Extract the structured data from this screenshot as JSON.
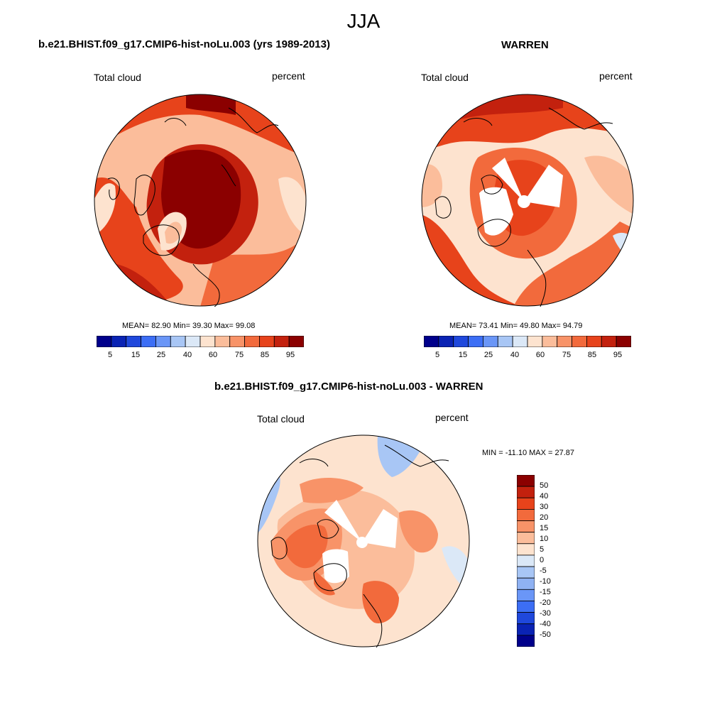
{
  "title": "JJA",
  "panels": [
    {
      "id": "model",
      "heading": "b.e21.BHIST.f09_g17.CMIP6-hist-noLu.003 (yrs 1989-2013)",
      "variable": "Total cloud",
      "units": "percent",
      "stats": "MEAN=  82.90  Min=  39.30  Max=  99.08",
      "colorbar_ticks": [
        "5",
        "15",
        "25",
        "40",
        "60",
        "75",
        "85",
        "95"
      ]
    },
    {
      "id": "obs",
      "heading": "WARREN",
      "variable": "Total cloud",
      "units": "percent",
      "stats": "MEAN=  73.41  Min=  49.80  Max=  94.79",
      "colorbar_ticks": [
        "5",
        "15",
        "25",
        "40",
        "60",
        "75",
        "85",
        "95"
      ]
    }
  ],
  "diff_panel": {
    "heading": "b.e21.BHIST.f09_g17.CMIP6-hist-noLu.003 - WARREN",
    "variable": "Total cloud",
    "units": "percent",
    "minmax": "MIN = -11.10 MAX =  27.87",
    "colorbar_ticks": [
      "50",
      "40",
      "30",
      "20",
      "15",
      "10",
      "5",
      "0",
      "-5",
      "-10",
      "-15",
      "-20",
      "-30",
      "-40",
      "-50"
    ]
  },
  "colors": {
    "abs_scale": [
      "#00008b",
      "#0a23b4",
      "#1f48dc",
      "#3c6ef5",
      "#6a96f7",
      "#a8c6f5",
      "#dbe8f7",
      "#fde3cf",
      "#fbbd9b",
      "#f89368",
      "#f26a3c",
      "#e7431b",
      "#c3210e",
      "#8b0000"
    ],
    "diff_scale": [
      "#8b0000",
      "#c3210e",
      "#e7431b",
      "#f26a3c",
      "#f89368",
      "#fbbd9b",
      "#fde3cf",
      "#dbe8f7",
      "#a8c6f5",
      "#8fb2f3",
      "#6a96f7",
      "#3c6ef5",
      "#1f48dc",
      "#0a23b4",
      "#00008b"
    ]
  }
}
